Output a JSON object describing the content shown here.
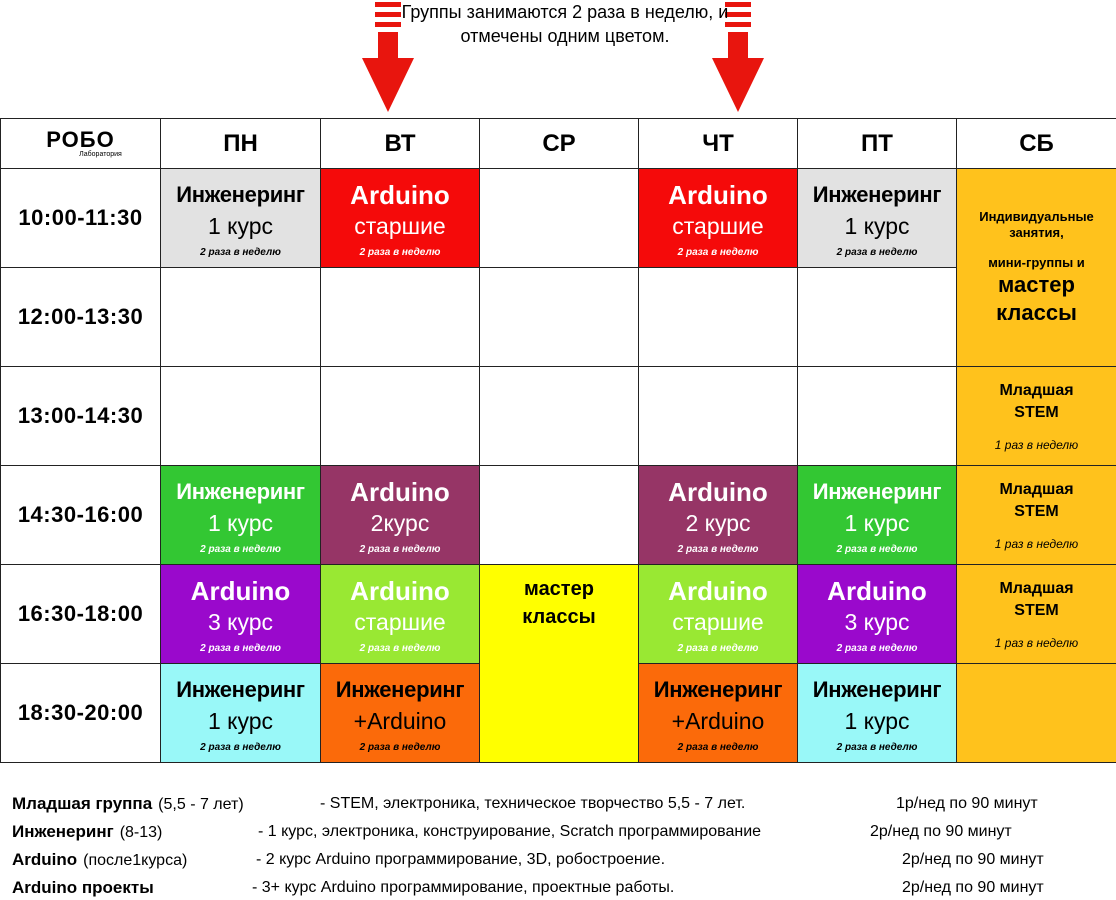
{
  "header": {
    "note": "Группы занимаются 2 раза в неделю, и отмечены одним цветом."
  },
  "logo": {
    "name": "РОБО",
    "subtitle": "Лаборатория"
  },
  "table": {
    "days": [
      "ПН",
      "ВТ",
      "СР",
      "ЧТ",
      "ПТ",
      "СБ"
    ],
    "rows": [
      {
        "time": "10:00-11:30",
        "cells": [
          {
            "title": "Инженеринг",
            "subtitle": "1 курс",
            "note": "2 раза в неделю",
            "color": "#e2e2e2",
            "text_color": "#000000"
          },
          {
            "title": "Arduino",
            "subtitle": "старшие",
            "note": "2 раза в неделю",
            "color": "#f50a0a",
            "text_color": "#ffffff"
          },
          null,
          {
            "title": "Arduino",
            "subtitle": "старшие",
            "note": "2 раза в неделю",
            "color": "#f50a0a",
            "text_color": "#ffffff"
          },
          {
            "title": "Инженеринг",
            "subtitle": "1 курс",
            "note": "2 раза в неделю",
            "color": "#e2e2e2",
            "text_color": "#000000"
          },
          {
            "small": "Индивидуальные занятия,",
            "small2": "мини-группы и",
            "big": "мастер классы",
            "color": "#ffc21c",
            "text_color": "#000000"
          }
        ]
      },
      {
        "time": "12:00-13:30",
        "cells": [
          null,
          null,
          null,
          null,
          null,
          null
        ]
      },
      {
        "time": "13:00-14:30",
        "cells": [
          null,
          null,
          null,
          null,
          null,
          {
            "title": "Младшая STEM",
            "note": "1 раз в неделю",
            "color": "#ffc21c",
            "text_color": "#000000"
          }
        ]
      },
      {
        "time": "14:30-16:00",
        "cells": [
          {
            "title": "Инженеринг",
            "subtitle": "1 курс",
            "note": "2 раза в неделю",
            "color": "#33c733",
            "text_color": "#ffffff"
          },
          {
            "title": "Arduino",
            "subtitle": "2курс",
            "note": "2 раза в неделю",
            "color": "#963566",
            "text_color": "#ffffff"
          },
          null,
          {
            "title": "Arduino",
            "subtitle": "2 курс",
            "note": "2 раза в неделю",
            "color": "#963566",
            "text_color": "#ffffff"
          },
          {
            "title": "Инженеринг",
            "subtitle": "1 курс",
            "note": "2 раза в неделю",
            "color": "#33c733",
            "text_color": "#ffffff"
          },
          {
            "title": "Младшая STEM",
            "note": "1 раз в неделю",
            "color": "#ffc21c",
            "text_color": "#000000"
          }
        ]
      },
      {
        "time": "16:30-18:00",
        "cells": [
          {
            "title": "Arduino",
            "subtitle": "3 курс",
            "note": "2 раза в неделю",
            "color": "#9a09cc",
            "text_color": "#ffffff"
          },
          {
            "title": "Arduino",
            "subtitle": "старшие",
            "note": "2 раза в неделю",
            "color": "#99e833",
            "text_color": "#ffffff"
          },
          {
            "big": "мастер классы",
            "color": "#ffff00",
            "text_color": "#000000"
          },
          {
            "title": "Arduino",
            "subtitle": "старшие",
            "note": "2 раза в неделю",
            "color": "#99e833",
            "text_color": "#ffffff"
          },
          {
            "title": "Arduino",
            "subtitle": "3 курс",
            "note": "2 раза в неделю",
            "color": "#9a09cc",
            "text_color": "#ffffff"
          },
          {
            "title": "Младшая STEM",
            "note": "1 раз в неделю",
            "color": "#ffc21c",
            "text_color": "#000000"
          }
        ]
      },
      {
        "time": "18:30-20:00",
        "cells": [
          {
            "title": "Инженеринг",
            "subtitle": "1 курс",
            "note": "2 раза в неделю",
            "color": "#99f8f8",
            "text_color": "#000000"
          },
          {
            "title": "Инженеринг",
            "subtitle": "+Arduino",
            "note": "2 раза в неделю",
            "color": "#fb6a0a",
            "text_color": "#000000"
          },
          null,
          {
            "title": "Инженеринг",
            "subtitle": "+Arduino",
            "note": "2 раза в неделю",
            "color": "#fb6a0a",
            "text_color": "#000000"
          },
          {
            "title": "Инженеринг",
            "subtitle": "1 курс",
            "note": "2 раза в неделю",
            "color": "#99f8f8",
            "text_color": "#000000"
          },
          {
            "color": "#ffc21c"
          }
        ]
      }
    ]
  },
  "legend": [
    {
      "name": "Младшая группа",
      "age": "(5,5 - 7 лет)",
      "description": "- STEM, электроника, техническое творчество 5,5 - 7 лет.",
      "frequency": "1р/нед по 90 минут"
    },
    {
      "name": "Инженеринг",
      "age": "(8-13)",
      "description": "- 1 курс, электроника, конструирование, Scratch программирование",
      "frequency": "2р/нед по 90 минут"
    },
    {
      "name": "Arduino",
      "age": "(после1курса)",
      "description": "- 2 курс Arduino программирование, 3D, робостроение.",
      "frequency": "2р/нед по 90 минут"
    },
    {
      "name": "Arduino проекты",
      "age": "",
      "description": "- 3+ курс Arduino программирование, проектные работы.",
      "frequency": "2р/нед по 90 минут"
    }
  ]
}
